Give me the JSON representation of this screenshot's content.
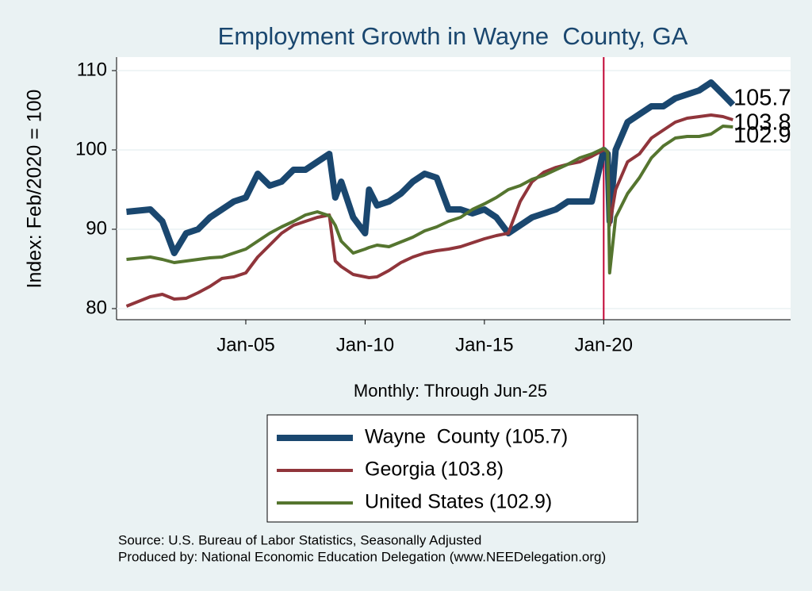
{
  "chart_data": {
    "type": "line",
    "title": "Employment Growth in Wayne  County, GA",
    "x_label": "Monthly: Through Jun-25",
    "y_label": "Index: Feb/2020 = 100",
    "notes": [
      "Source: U.S. Bureau of Labor Statistics, Seasonally Adjusted",
      "Produced by: National Economic Education Delegation (www.NEEDelegation.org)"
    ],
    "x": [
      "Jan-00",
      "Jan-01",
      "Jul-01",
      "Jan-02",
      "Jul-02",
      "Jan-03",
      "Jul-03",
      "Jan-04",
      "Jul-04",
      "Jan-05",
      "Jul-05",
      "Jan-06",
      "Jul-06",
      "Jan-07",
      "Jul-07",
      "Jan-08",
      "Jul-08",
      "Oct-08",
      "Jan-09",
      "Jul-09",
      "Jan-10",
      "Mar-10",
      "Jul-10",
      "Jan-11",
      "Jul-11",
      "Jan-12",
      "Jul-12",
      "Jan-13",
      "Jul-13",
      "Jan-14",
      "Jul-14",
      "Jan-15",
      "Jul-15",
      "Jan-16",
      "Jul-16",
      "Jan-17",
      "Jul-17",
      "Jan-18",
      "Jul-18",
      "Jan-19",
      "Jul-19",
      "Jan-20",
      "Mar-20",
      "Apr-20",
      "Jul-20",
      "Jan-21",
      "Jul-21",
      "Jan-22",
      "Jul-22",
      "Jan-23",
      "Jul-23",
      "Jan-24",
      "Jul-24",
      "Jan-25",
      "Jun-25"
    ],
    "series": [
      {
        "name": "Wayne  County (105.7)",
        "color": "#1a476f",
        "values": [
          92.2,
          92.5,
          91,
          87,
          89.5,
          90,
          91.5,
          92.5,
          93.5,
          94,
          97,
          95.5,
          96,
          97.5,
          97.5,
          98.5,
          99.5,
          94,
          96,
          91.5,
          89.5,
          95,
          93,
          93.5,
          94.5,
          96,
          97,
          96.5,
          92.5,
          92.5,
          92,
          92.5,
          91.5,
          89.5,
          90.5,
          91.5,
          92,
          92.5,
          93.5,
          93.5,
          93.5,
          100,
          99.5,
          91,
          100,
          103.5,
          104.5,
          105.5,
          105.5,
          106.5,
          107,
          107.5,
          108.5,
          107,
          105.7
        ]
      },
      {
        "name": "Georgia (103.8)",
        "color": "#90353b",
        "values": [
          80.3,
          81.5,
          81.8,
          81.2,
          81.3,
          82,
          82.8,
          83.8,
          84,
          84.5,
          86.5,
          88,
          89.5,
          90.5,
          91,
          91.5,
          91.8,
          86,
          85.3,
          84.3,
          84,
          83.9,
          84,
          84.8,
          85.8,
          86.5,
          87,
          87.3,
          87.5,
          87.8,
          88.3,
          88.8,
          89.2,
          89.5,
          93.5,
          96,
          97.2,
          97.8,
          98.2,
          98.5,
          99.2,
          100,
          99.8,
          90.5,
          95,
          98.5,
          99.5,
          101.5,
          102.5,
          103.5,
          104,
          104.2,
          104.4,
          104.2,
          103.8
        ]
      },
      {
        "name": "United States (102.9)",
        "color": "#55752f",
        "values": [
          86.2,
          86.5,
          86.2,
          85.8,
          86,
          86.2,
          86.4,
          86.5,
          87,
          87.5,
          88.5,
          89.5,
          90.3,
          91,
          91.8,
          92.2,
          91.7,
          90.5,
          88.5,
          87,
          87.5,
          87.7,
          88,
          87.8,
          88.4,
          89,
          89.8,
          90.3,
          91,
          91.5,
          92.5,
          93.2,
          94,
          95,
          95.5,
          96.3,
          96.8,
          97.5,
          98.2,
          99,
          99.5,
          100.2,
          99.7,
          84.5,
          91.5,
          94.5,
          96.5,
          99,
          100.5,
          101.5,
          101.7,
          101.7,
          102,
          103,
          102.9
        ]
      }
    ],
    "xlim": [
      "Aug-99",
      "Nov-27"
    ],
    "xticks": [
      "Jan-05",
      "Jan-10",
      "Jan-15",
      "Jan-20"
    ],
    "ylim": [
      78.6,
      111.7
    ],
    "yticks": [
      80,
      90,
      100,
      110
    ],
    "grid": true,
    "vline": {
      "x": "Jan-20",
      "color": "#c10534"
    }
  }
}
